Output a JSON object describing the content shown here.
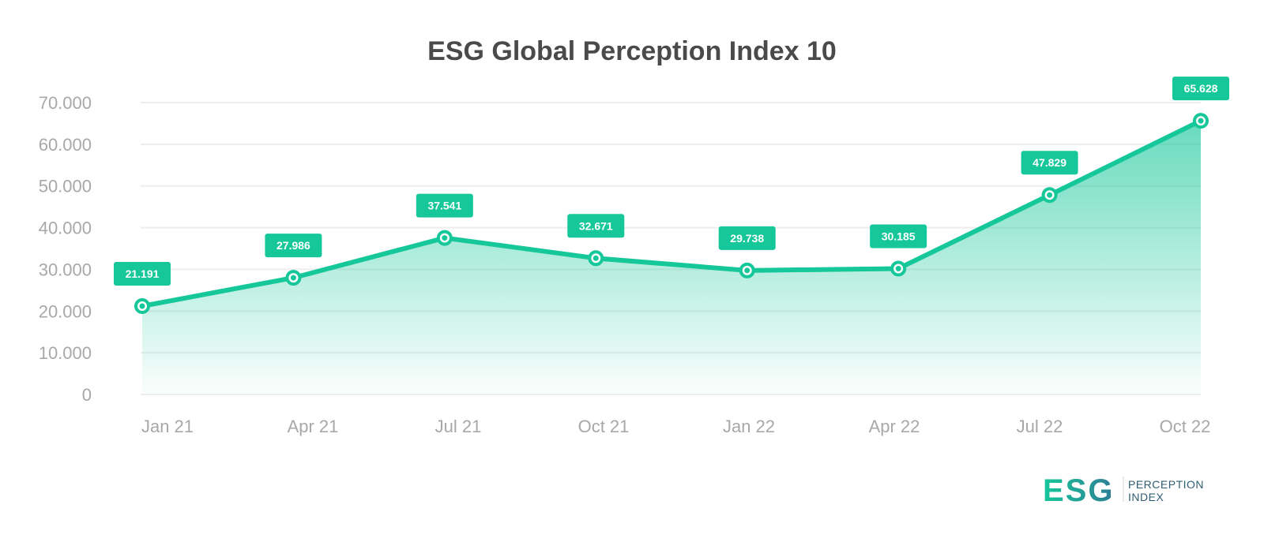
{
  "chart_data": {
    "type": "area",
    "title": "ESG Global Perception Index 10",
    "xlabel": "",
    "ylabel": "",
    "categories": [
      "Jan 21",
      "Apr 21",
      "Jul 21",
      "Oct 21",
      "Jan 22",
      "Apr 22",
      "Jul 22",
      "Oct 22"
    ],
    "values": [
      21.191,
      27.986,
      37.541,
      32.671,
      29.738,
      30.185,
      47.829,
      65.628
    ],
    "value_labels": [
      "21.191",
      "27.986",
      "37.541",
      "32.671",
      "29.738",
      "30.185",
      "47.829",
      "65.628"
    ],
    "ylim": [
      0,
      70
    ],
    "yticks": [
      0,
      10,
      20,
      30,
      40,
      50,
      60,
      70
    ],
    "ytick_labels": [
      "0",
      "10.000",
      "20.000",
      "30.000",
      "40.000",
      "50.000",
      "60.000",
      "70.000"
    ],
    "grid": true,
    "legend": "none"
  },
  "logo": {
    "mark": "ESG",
    "line1": "PERCEPTION",
    "line2": "INDEX"
  },
  "colors": {
    "line": "#16c79a",
    "label_bg": "#16c79a",
    "area_top": "#16c79a",
    "grid": "#eeeeee",
    "title": "#4a4a4a",
    "axis_text": "#a8a8a8",
    "logo_text": "#2f5d73"
  }
}
